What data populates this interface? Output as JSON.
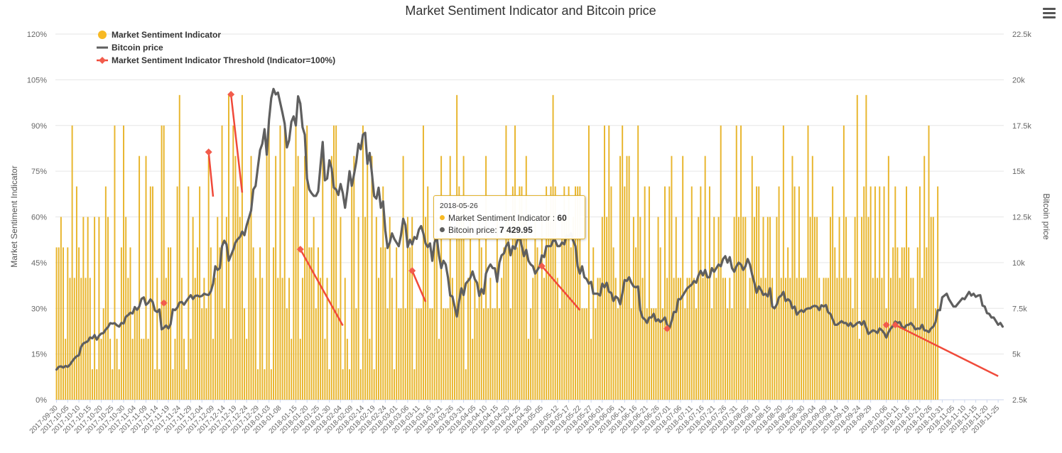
{
  "chart_data": {
    "type": "bar+line",
    "title": "Market Sentiment Indicator and Bitcoin price",
    "ylabel": "Market Sentiment Indicator",
    "y2label": "Bitcoin price",
    "yticks": [
      "0%",
      "15%",
      "30%",
      "45%",
      "60%",
      "75%",
      "90%",
      "105%",
      "120%"
    ],
    "y2ticks": [
      "2.5k",
      "5k",
      "7.5k",
      "10k",
      "12.5k",
      "15k",
      "17.5k",
      "20k",
      "22.5k"
    ],
    "ylim": [
      0,
      120
    ],
    "y2lim": [
      2500,
      22500
    ],
    "x_start": "2017-09-30",
    "x_end": "2018-11-27",
    "x_tick_labels": [
      "2017-09-30",
      "2017-10-05",
      "2017-10-10",
      "2017-10-15",
      "2017-10-20",
      "2017-10-25",
      "2017-10-30",
      "2017-11-04",
      "2017-11-09",
      "2017-11-14",
      "2017-11-19",
      "2017-11-24",
      "2017-11-29",
      "2017-12-04",
      "2017-12-09",
      "2017-12-14",
      "2017-12-19",
      "2017-12-24",
      "2017-12-29",
      "2018-01-03",
      "2018-01-08",
      "2018-01-15",
      "2018-01-20",
      "2018-01-25",
      "2018-01-30",
      "2018-02-04",
      "2018-02-09",
      "2018-02-14",
      "2018-02-19",
      "2018-02-24",
      "2018-03-01",
      "2018-03-06",
      "2018-03-11",
      "2018-03-16",
      "2018-03-21",
      "2018-03-26",
      "2018-03-31",
      "2018-04-05",
      "2018-04-10",
      "2018-04-15",
      "2018-04-20",
      "2018-04-25",
      "2018-04-30",
      "2018-05-05",
      "2018-05-12",
      "2018-05-17",
      "2018-05-22",
      "2018-05-27",
      "2018-06-01",
      "2018-06-06",
      "2018-06-11",
      "2018-06-16",
      "2018-06-21",
      "2018-06-26",
      "2018-07-01",
      "2018-07-06",
      "2018-07-11",
      "2018-07-16",
      "2018-07-21",
      "2018-07-26",
      "2018-07-31",
      "2018-08-05",
      "2018-08-10",
      "2018-08-15",
      "2018-08-20",
      "2018-08-25",
      "2018-08-30",
      "2018-09-04",
      "2018-09-09",
      "2018-09-14",
      "2018-09-19",
      "2018-09-24",
      "2018-09-29",
      "2018-10-06",
      "2018-10-11",
      "2018-10-16",
      "2018-10-21",
      "2018-10-26",
      "2018-10-31",
      "2018-11-05",
      "2018-11-10",
      "2018-11-15",
      "2018-11-20",
      "2018-11-25"
    ],
    "legend": [
      {
        "name": "Market Sentiment Indicator",
        "color": "#f7b924",
        "marker": "circle"
      },
      {
        "name": "Bitcoin price",
        "color": "#5f5f5f",
        "marker": "line"
      },
      {
        "name": "Market Sentiment Indicator Threshold (Indicator=100%)",
        "color": "#f04a3a",
        "marker": "diamond-line"
      }
    ],
    "legend_position": "top-left",
    "bar_color": "#e8b52c",
    "line_color": "#5f5f5f",
    "threshold_color": "#f04a3a",
    "indicator_values": [
      50,
      50,
      60,
      50,
      20,
      50,
      40,
      90,
      40,
      70,
      50,
      40,
      60,
      40,
      60,
      40,
      10,
      60,
      10,
      60,
      20,
      30,
      70,
      60,
      20,
      10,
      90,
      20,
      10,
      50,
      90,
      60,
      40,
      50,
      20,
      30,
      30,
      80,
      20,
      20,
      80,
      20,
      70,
      70,
      10,
      40,
      10,
      90,
      90,
      40,
      50,
      50,
      10,
      20,
      70,
      100,
      40,
      20,
      10,
      70,
      20,
      60,
      40,
      50,
      70,
      30,
      40,
      30,
      80,
      50,
      20,
      40,
      60,
      50,
      90,
      30,
      60,
      100,
      20,
      90,
      80,
      70,
      60,
      100,
      30,
      20,
      60,
      80,
      50,
      40,
      10,
      50,
      40,
      10,
      80,
      90,
      10,
      50,
      80,
      40,
      90,
      40,
      90,
      30,
      40,
      20,
      70,
      90,
      80,
      20,
      40,
      80,
      90,
      50,
      50,
      60,
      30,
      50,
      40,
      80,
      20,
      40,
      10,
      80,
      90,
      90,
      30,
      60,
      10,
      40,
      20,
      10,
      70,
      80,
      30,
      60,
      10,
      90,
      60,
      80,
      20,
      80,
      10,
      60,
      40,
      50,
      70,
      50,
      30,
      60,
      40,
      10,
      50,
      30,
      30,
      80,
      30,
      60,
      50,
      60,
      10,
      30,
      30,
      30,
      90,
      60,
      70,
      30,
      30,
      60,
      60,
      20,
      80,
      30,
      30,
      30,
      80,
      40,
      30,
      100,
      70,
      60,
      80,
      10,
      40,
      60,
      20,
      40,
      30,
      60,
      50,
      30,
      80,
      30,
      40,
      30,
      30,
      60,
      30,
      40,
      50,
      90,
      60,
      30,
      70,
      90,
      50,
      70,
      70,
      60,
      80,
      20,
      30,
      40,
      60,
      50,
      20,
      60,
      40,
      70,
      60,
      70,
      100,
      70,
      40,
      30,
      60,
      70,
      60,
      70,
      50,
      60,
      70,
      70,
      70,
      30,
      30,
      30,
      90,
      20,
      50,
      30,
      40,
      40,
      60,
      90,
      60,
      90,
      70,
      50,
      40,
      30,
      80,
      90,
      70,
      80,
      80,
      30,
      60,
      50,
      90,
      60,
      40,
      70,
      30,
      70,
      30,
      30,
      30,
      60,
      50,
      30,
      70,
      40,
      70,
      80,
      40,
      60,
      40,
      40,
      80,
      30,
      40,
      40,
      70,
      40,
      30,
      60,
      70,
      40,
      80,
      40,
      70,
      30,
      60,
      40,
      60,
      90,
      40,
      40,
      30,
      40,
      30,
      60,
      90,
      60,
      90,
      60,
      60,
      30,
      40,
      80,
      60,
      70,
      70,
      40,
      60,
      40,
      60,
      60,
      40,
      30,
      60,
      70,
      40,
      90,
      40,
      50,
      40,
      80,
      70,
      40,
      70,
      40,
      40,
      40,
      90,
      60,
      80,
      60,
      60,
      40,
      30,
      40,
      40,
      40,
      60,
      70,
      50,
      40,
      60,
      40,
      90,
      60,
      40,
      40,
      30,
      60,
      100,
      20,
      60,
      70,
      100,
      60,
      70,
      40,
      70,
      40,
      70,
      40,
      70,
      30,
      80,
      40,
      50,
      70,
      50,
      40,
      50,
      50,
      70,
      50,
      40,
      40,
      30,
      50,
      70,
      40,
      80,
      50,
      90,
      60,
      60,
      30,
      70
    ],
    "price_values": [
      4150,
      4300,
      4330,
      4260,
      4350,
      4300,
      4420,
      4600,
      4760,
      4880,
      4930,
      5400,
      5580,
      5640,
      5700,
      5910,
      5860,
      6040,
      5790,
      6000,
      6120,
      6150,
      6340,
      6470,
      6690,
      6660,
      6690,
      6570,
      6500,
      6700,
      6670,
      7040,
      7130,
      7260,
      7220,
      7570,
      7420,
      7600,
      8020,
      8100,
      7690,
      7800,
      7990,
      7850,
      7380,
      7300,
      7440,
      6350,
      6440,
      6560,
      6400,
      6630,
      7440,
      7400,
      7540,
      7820,
      7850,
      7700,
      7890,
      8060,
      8220,
      8010,
      8180,
      8200,
      8140,
      8180,
      8300,
      8250,
      8230,
      8430,
      8850,
      9800,
      9600,
      9700,
      10900,
      11200,
      11000,
      10100,
      10400,
      10700,
      11100,
      11280,
      11400,
      11700,
      11500,
      12040,
      12440,
      12850,
      14000,
      14200,
      15200,
      16150,
      16500,
      17300,
      15900,
      17800,
      19000,
      19500,
      19200,
      19300,
      18750,
      18200,
      17600,
      16300,
      16700,
      17700,
      18000,
      17500,
      19100,
      18700,
      17400,
      17000,
      14600,
      14000,
      13800,
      13650,
      13650,
      13900,
      15300,
      16600,
      14500,
      14600,
      15600,
      15150,
      14100,
      14000,
      13700,
      14300,
      13800,
      13000,
      13900,
      15000,
      14200,
      14820,
      15500,
      16500,
      16200,
      17000,
      17100,
      15400,
      16000,
      14900,
      13640,
      13500,
      14100,
      13000,
      13350,
      11760,
      10800,
      11100,
      11600,
      11300,
      11100,
      10900,
      11500,
      12400,
      12050,
      10850,
      11250,
      11000,
      11400,
      11300,
      11800,
      12000,
      11600,
      11050,
      10850,
      11050,
      10100,
      11100,
      11400,
      10400,
      9700,
      10100,
      9900,
      9200,
      8200,
      8150,
      7600,
      7050,
      7900,
      8600,
      8230,
      8860,
      9000,
      9170,
      9520,
      9100,
      8900,
      8180,
      8560,
      8300,
      9400,
      9700,
      9900,
      9700,
      9690,
      8950,
      10000,
      10400,
      10500,
      10900,
      11100,
      10400,
      10900,
      10750,
      11200,
      11440,
      10900,
      10350,
      10700,
      10100,
      9900,
      9800,
      9400,
      9600,
      9800,
      10400,
      10300,
      10900,
      10900,
      10900,
      11200,
      11200,
      10900,
      10900,
      11100,
      11000,
      11500,
      11400,
      11600,
      11200,
      10900,
      9800,
      9400,
      9800,
      9200,
      9100,
      8850,
      8950,
      8300,
      8300,
      8300,
      8200,
      8850,
      8650,
      8900,
      8400,
      8350,
      7900,
      8150,
      8050,
      7720,
      8330,
      9050,
      9000,
      9200,
      8900,
      8700,
      8650,
      8700,
      7400,
      7000,
      6900,
      6700,
      7000,
      7000,
      7200,
      6800,
      6900,
      6750,
      6850,
      7000,
      6600,
      6400,
      6800,
      7300,
      7300,
      8000,
      8000,
      8200,
      8400,
      8600,
      8700,
      8800,
      9000,
      8900,
      9300,
      9550,
      9300,
      9600,
      9200,
      9200,
      9700,
      9500,
      9700,
      9900,
      9800,
      10200,
      10350,
      10000,
      10300,
      9700,
      9500,
      9800,
      10000,
      9900,
      9600,
      9800,
      10200,
      9900,
      9350,
      8900,
      8350,
      8700,
      8500,
      8230,
      8300,
      8150,
      8600,
      7600,
      7500,
      7700,
      8100,
      8200,
      8400,
      7900,
      8000,
      7900,
      7500,
      7600,
      7150,
      7300,
      7400,
      7300,
      7450,
      7500,
      7500,
      7600,
      7640,
      7600,
      7400,
      7670,
      7600,
      7680,
      7280,
      7200,
      6900,
      6600,
      6600,
      6700,
      6800,
      6700,
      6700,
      6540,
      6700,
      6500,
      6580,
      6700,
      6750,
      6600,
      6800,
      6450,
      6100,
      6200,
      6300,
      6250,
      6150,
      6400,
      6300,
      6150,
      5900,
      6200,
      6400,
      6550,
      6780,
      6700,
      6750,
      6500,
      6400,
      6580,
      6600,
      6700,
      6550,
      6350,
      6400,
      6380,
      6600,
      6300,
      6280,
      6200,
      6400,
      6500,
      6750,
      7400,
      7400,
      8100,
      8200,
      8300,
      8000,
      7800,
      7600,
      7600,
      7750,
      7900,
      8050,
      8000,
      8200,
      8400,
      8200,
      8300,
      8130,
      8200,
      8220,
      7650,
      7600,
      7240,
      7200,
      7000,
      7000,
      6800,
      6600,
      6700,
      6500,
      6380,
      6800,
      6500,
      6550,
      6700,
      6500,
      6300,
      6400,
      6600,
      6400,
      6750,
      6700,
      6750,
      6800,
      6600,
      6800,
      6550,
      6700,
      6800,
      6900,
      6900,
      7000,
      7100,
      7200,
      7200,
      7150,
      7240,
      7300,
      6620,
      6600,
      6470,
      6600,
      6590,
      6570,
      6600,
      6550,
      6550,
      6580,
      6720,
      6650,
      6600,
      6550,
      6600,
      6500,
      6580,
      6580,
      6500,
      6650,
      6720,
      6760,
      6700,
      6650,
      6600,
      6700,
      6600,
      6570,
      6600,
      6650,
      6700,
      6600,
      6650,
      6500,
      6550,
      6620,
      6500,
      6500,
      6430,
      6400,
      6500,
      6400,
      6450,
      6500,
      6450,
      6400,
      6450,
      6350,
      6350,
      6350,
      6400,
      6400,
      6350,
      6450,
      6400,
      6420,
      6350,
      6450,
      6350,
      6350,
      6200,
      6200,
      6250,
      6350,
      6350,
      6300,
      6300,
      6380,
      6400,
      6400,
      6300,
      6380,
      6200,
      5600,
      5600,
      5600,
      5500,
      5200,
      4800,
      4600,
      4300,
      4300,
      4100,
      4100,
      3800,
      4000
    ],
    "threshold_segments": [
      {
        "from": "2017-11-17",
        "to": "2017-11-17",
        "from_price": 7790,
        "to_price": 7790
      },
      {
        "from": "2017-12-07",
        "to": "2017-12-09",
        "from_price": 16050,
        "to_price": 13610
      },
      {
        "from": "2017-12-17",
        "to": "2017-12-22",
        "from_price": 19200,
        "to_price": 13830
      },
      {
        "from": "2018-01-17",
        "to": "2018-02-05",
        "from_price": 10730,
        "to_price": 6560
      },
      {
        "from": "2018-03-08",
        "to": "2018-03-14",
        "from_price": 9560,
        "to_price": 7860
      },
      {
        "from": "2018-05-05",
        "to": "2018-05-22",
        "from_price": 9810,
        "to_price": 7400
      },
      {
        "from": "2018-06-30",
        "to": "2018-06-30",
        "from_price": 6390,
        "to_price": 6390
      },
      {
        "from": "2018-10-06",
        "to": "2018-10-06",
        "from_price": 6590,
        "to_price": 6590
      },
      {
        "from": "2018-10-10",
        "to": "2018-11-25",
        "from_price": 6590,
        "to_price": 3790
      }
    ],
    "tooltip": {
      "date": "2018-05-26",
      "indicator_label": "Market Sentiment Indicator",
      "indicator_value": "60",
      "price_label": "Bitcoin price",
      "price_value": "7 429.95"
    }
  }
}
